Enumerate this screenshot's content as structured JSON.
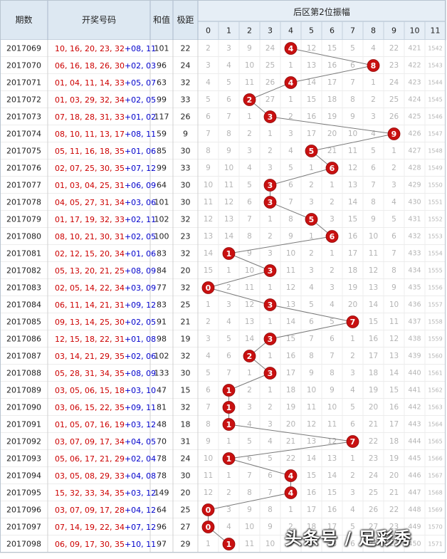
{
  "chart_data": {
    "type": "table",
    "title": "后区第2位振幅",
    "headers": {
      "period": "期数",
      "numbers": "开奖号码",
      "sum": "和值",
      "span": "极距",
      "section": "后区第2位振幅"
    },
    "columns": [
      "0",
      "1",
      "2",
      "3",
      "4",
      "5",
      "6",
      "7",
      "8",
      "9",
      "10",
      "11"
    ],
    "rows": [
      {
        "period": "2017069",
        "front": "10, 16, 20, 23, 32",
        "back": "+08, 11",
        "sum": "101",
        "span": "22",
        "hit": 4,
        "cells": [
          "2",
          "3",
          "9",
          "24",
          "4",
          "12",
          "15",
          "5",
          "4",
          "22",
          "421",
          "1542"
        ]
      },
      {
        "period": "2017070",
        "front": "06, 16, 18, 26, 30",
        "back": "+02, 03",
        "sum": "96",
        "span": "24",
        "hit": 8,
        "cells": [
          "3",
          "4",
          "10",
          "25",
          "1",
          "13",
          "16",
          "6",
          "8",
          "23",
          "422",
          "1543"
        ]
      },
      {
        "period": "2017071",
        "front": "01, 04, 11, 14, 33",
        "back": "+05, 07",
        "sum": "63",
        "span": "32",
        "hit": 4,
        "cells": [
          "4",
          "5",
          "11",
          "26",
          "4",
          "14",
          "17",
          "7",
          "1",
          "24",
          "423",
          "1544"
        ]
      },
      {
        "period": "2017072",
        "front": "01, 03, 29, 32, 34",
        "back": "+02, 05",
        "sum": "99",
        "span": "33",
        "hit": 2,
        "cells": [
          "5",
          "6",
          "2",
          "27",
          "1",
          "15",
          "18",
          "8",
          "2",
          "25",
          "424",
          "1545"
        ]
      },
      {
        "period": "2017073",
        "front": "07, 18, 28, 31, 33",
        "back": "+01, 02",
        "sum": "117",
        "span": "26",
        "hit": 3,
        "cells": [
          "6",
          "7",
          "1",
          "3",
          "2",
          "16",
          "19",
          "9",
          "3",
          "26",
          "425",
          "1546"
        ]
      },
      {
        "period": "2017074",
        "front": "08, 10, 11, 13, 17",
        "back": "+08, 11",
        "sum": "59",
        "span": "9",
        "hit": 9,
        "cells": [
          "7",
          "8",
          "2",
          "1",
          "3",
          "17",
          "20",
          "10",
          "4",
          "9",
          "426",
          "1547"
        ]
      },
      {
        "period": "2017075",
        "front": "05, 11, 16, 18, 35",
        "back": "+01, 06",
        "sum": "85",
        "span": "30",
        "hit": 5,
        "cells": [
          "8",
          "9",
          "3",
          "2",
          "4",
          "5",
          "21",
          "11",
          "5",
          "1",
          "427",
          "1548"
        ]
      },
      {
        "period": "2017076",
        "front": "02, 07, 25, 30, 35",
        "back": "+07, 12",
        "sum": "99",
        "span": "33",
        "hit": 6,
        "cells": [
          "9",
          "10",
          "4",
          "3",
          "5",
          "1",
          "6",
          "12",
          "6",
          "2",
          "428",
          "1549"
        ]
      },
      {
        "period": "2017077",
        "front": "01, 03, 04, 25, 31",
        "back": "+06, 09",
        "sum": "64",
        "span": "30",
        "hit": 3,
        "cells": [
          "10",
          "11",
          "5",
          "3",
          "6",
          "2",
          "1",
          "13",
          "7",
          "3",
          "429",
          "1550"
        ]
      },
      {
        "period": "2017078",
        "front": "04, 05, 27, 31, 34",
        "back": "+03, 06",
        "sum": "101",
        "span": "30",
        "hit": 3,
        "cells": [
          "11",
          "12",
          "6",
          "3",
          "7",
          "3",
          "2",
          "14",
          "8",
          "4",
          "430",
          "1551"
        ]
      },
      {
        "period": "2017079",
        "front": "01, 17, 19, 32, 33",
        "back": "+02, 11",
        "sum": "102",
        "span": "32",
        "hit": 5,
        "cells": [
          "12",
          "13",
          "7",
          "1",
          "8",
          "5",
          "3",
          "15",
          "9",
          "5",
          "431",
          "1552"
        ]
      },
      {
        "period": "2017080",
        "front": "08, 10, 21, 30, 31",
        "back": "+02, 05",
        "sum": "100",
        "span": "23",
        "hit": 6,
        "cells": [
          "13",
          "14",
          "8",
          "2",
          "9",
          "1",
          "6",
          "16",
          "10",
          "6",
          "432",
          "1553"
        ]
      },
      {
        "period": "2017081",
        "front": "02, 12, 15, 20, 34",
        "back": "+01, 06",
        "sum": "83",
        "span": "32",
        "hit": 1,
        "cells": [
          "14",
          "1",
          "9",
          "3",
          "10",
          "2",
          "1",
          "17",
          "11",
          "7",
          "433",
          "1554"
        ]
      },
      {
        "period": "2017082",
        "front": "05, 13, 20, 21, 25",
        "back": "+08, 09",
        "sum": "84",
        "span": "20",
        "hit": 3,
        "cells": [
          "15",
          "1",
          "10",
          "3",
          "11",
          "3",
          "2",
          "18",
          "12",
          "8",
          "434",
          "1555"
        ]
      },
      {
        "period": "2017083",
        "front": "02, 05, 14, 22, 34",
        "back": "+03, 09",
        "sum": "77",
        "span": "32",
        "hit": 0,
        "cells": [
          "0",
          "2",
          "11",
          "1",
          "12",
          "4",
          "3",
          "19",
          "13",
          "9",
          "435",
          "1556"
        ]
      },
      {
        "period": "2017084",
        "front": "06, 11, 14, 21, 31",
        "back": "+09, 12",
        "sum": "83",
        "span": "25",
        "hit": 3,
        "cells": [
          "1",
          "3",
          "12",
          "3",
          "13",
          "5",
          "4",
          "20",
          "14",
          "10",
          "436",
          "1557"
        ]
      },
      {
        "period": "2017085",
        "front": "09, 13, 14, 25, 30",
        "back": "+02, 05",
        "sum": "91",
        "span": "21",
        "hit": 7,
        "cells": [
          "2",
          "4",
          "13",
          "1",
          "14",
          "6",
          "5",
          "7",
          "15",
          "11",
          "437",
          "1558"
        ]
      },
      {
        "period": "2017086",
        "front": "12, 15, 18, 22, 31",
        "back": "+01, 08",
        "sum": "98",
        "span": "19",
        "hit": 3,
        "cells": [
          "3",
          "5",
          "14",
          "3",
          "15",
          "7",
          "6",
          "1",
          "16",
          "12",
          "438",
          "1559"
        ]
      },
      {
        "period": "2017087",
        "front": "03, 14, 21, 29, 35",
        "back": "+02, 06",
        "sum": "102",
        "span": "32",
        "hit": 2,
        "cells": [
          "4",
          "6",
          "2",
          "1",
          "16",
          "8",
          "7",
          "2",
          "17",
          "13",
          "439",
          "1560"
        ]
      },
      {
        "period": "2017088",
        "front": "05, 28, 31, 34, 35",
        "back": "+08, 09",
        "sum": "133",
        "span": "30",
        "hit": 3,
        "cells": [
          "5",
          "7",
          "1",
          "3",
          "17",
          "9",
          "8",
          "3",
          "18",
          "14",
          "440",
          "1561"
        ]
      },
      {
        "period": "2017089",
        "front": "03, 05, 06, 15, 18",
        "back": "+03, 10",
        "sum": "47",
        "span": "15",
        "hit": 1,
        "cells": [
          "6",
          "1",
          "2",
          "1",
          "18",
          "10",
          "9",
          "4",
          "19",
          "15",
          "441",
          "1562"
        ]
      },
      {
        "period": "2017090",
        "front": "03, 06, 15, 22, 35",
        "back": "+09, 11",
        "sum": "81",
        "span": "32",
        "hit": 1,
        "cells": [
          "7",
          "1",
          "3",
          "2",
          "19",
          "11",
          "10",
          "5",
          "20",
          "16",
          "442",
          "1563"
        ]
      },
      {
        "period": "2017091",
        "front": "01, 05, 07, 16, 19",
        "back": "+03, 12",
        "sum": "48",
        "span": "18",
        "hit": 1,
        "cells": [
          "8",
          "1",
          "4",
          "3",
          "20",
          "12",
          "11",
          "6",
          "21",
          "17",
          "443",
          "1564"
        ]
      },
      {
        "period": "2017092",
        "front": "03, 07, 09, 17, 34",
        "back": "+04, 05",
        "sum": "70",
        "span": "31",
        "hit": 7,
        "cells": [
          "9",
          "1",
          "5",
          "4",
          "21",
          "13",
          "12",
          "7",
          "22",
          "18",
          "444",
          "1565"
        ]
      },
      {
        "period": "2017093",
        "front": "05, 06, 17, 21, 29",
        "back": "+02, 04",
        "sum": "78",
        "span": "24",
        "hit": 1,
        "cells": [
          "10",
          "1",
          "6",
          "5",
          "22",
          "14",
          "13",
          "1",
          "23",
          "19",
          "445",
          "1566"
        ]
      },
      {
        "period": "2017094",
        "front": "03, 05, 08, 29, 33",
        "back": "+04, 08",
        "sum": "78",
        "span": "30",
        "hit": 4,
        "cells": [
          "11",
          "1",
          "7",
          "6",
          "4",
          "15",
          "14",
          "2",
          "24",
          "20",
          "446",
          "1567"
        ]
      },
      {
        "period": "2017095",
        "front": "15, 32, 33, 34, 35",
        "back": "+03, 12",
        "sum": "149",
        "span": "20",
        "hit": 4,
        "cells": [
          "12",
          "2",
          "8",
          "7",
          "4",
          "16",
          "15",
          "3",
          "25",
          "21",
          "447",
          "1568"
        ]
      },
      {
        "period": "2017096",
        "front": "03, 07, 09, 17, 28",
        "back": "+04, 12",
        "sum": "64",
        "span": "25",
        "hit": 0,
        "cells": [
          "0",
          "3",
          "9",
          "8",
          "1",
          "17",
          "16",
          "4",
          "26",
          "22",
          "448",
          "1569"
        ]
      },
      {
        "period": "2017097",
        "front": "07, 14, 19, 22, 34",
        "back": "+07, 12",
        "sum": "96",
        "span": "27",
        "hit": 0,
        "cells": [
          "0",
          "4",
          "10",
          "9",
          "2",
          "18",
          "17",
          "5",
          "27",
          "23",
          "449",
          "1570"
        ]
      },
      {
        "period": "2017098",
        "front": "06, 09, 17, 30, 35",
        "back": "+10, 11",
        "sum": "97",
        "span": "29",
        "hit": 1,
        "cells": [
          "1",
          "1",
          "11",
          "10",
          "3",
          "19",
          "18",
          "6",
          "28",
          "24",
          "450",
          "1571"
        ]
      }
    ],
    "colors": {
      "front_numbers": "#cc0000",
      "back_numbers": "#0000cc",
      "ball_fill": "#c81010",
      "line": "#7a7a7a",
      "header_bg": "#dde8f2",
      "miss_text": "#b4b4b4"
    },
    "watermark": "头条号 / 足彩秀"
  }
}
